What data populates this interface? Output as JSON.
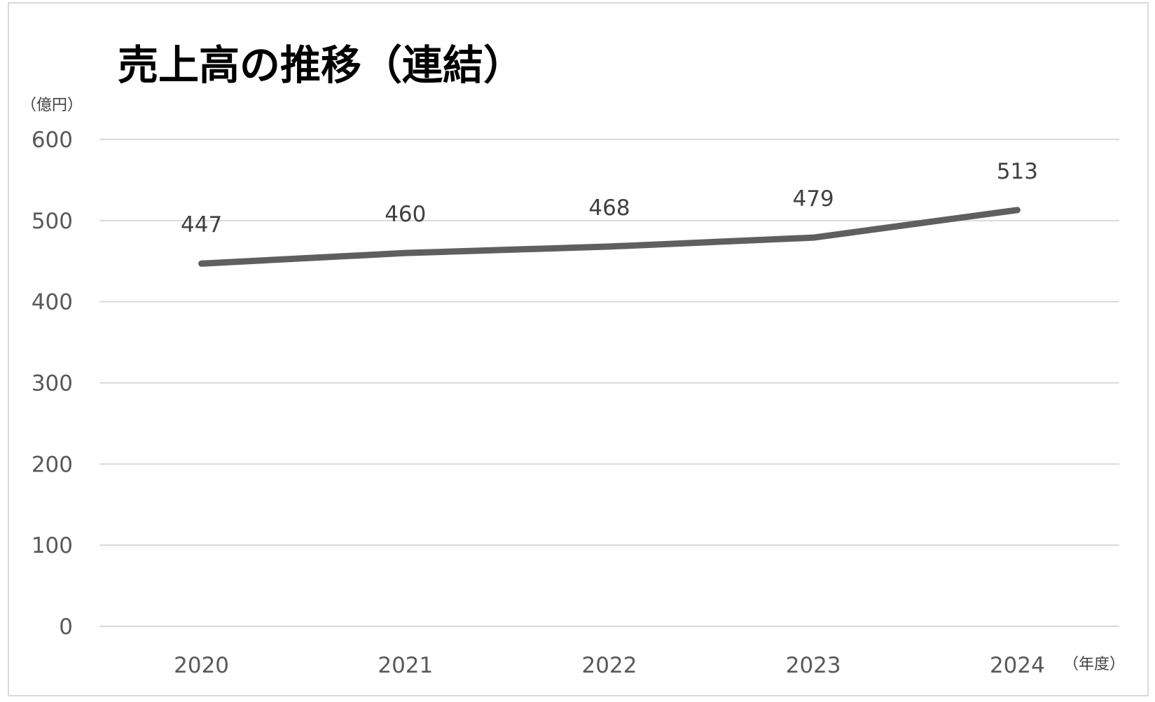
{
  "chart_data": {
    "type": "line",
    "title": "売上高の推移（連結）",
    "ylabel": "（億円）",
    "xlabel": "（年度）",
    "categories": [
      "2020",
      "2021",
      "2022",
      "2023",
      "2024"
    ],
    "yticks": [
      "0",
      "100",
      "200",
      "300",
      "400",
      "500",
      "600"
    ],
    "ylim": [
      0,
      600
    ],
    "series": [
      {
        "values": [
          447,
          460,
          468,
          479,
          513
        ]
      }
    ],
    "data_labels": [
      "447",
      "460",
      "468",
      "479",
      "513"
    ],
    "grid": true,
    "legend": "none",
    "line_color": "#5f5f5f"
  }
}
